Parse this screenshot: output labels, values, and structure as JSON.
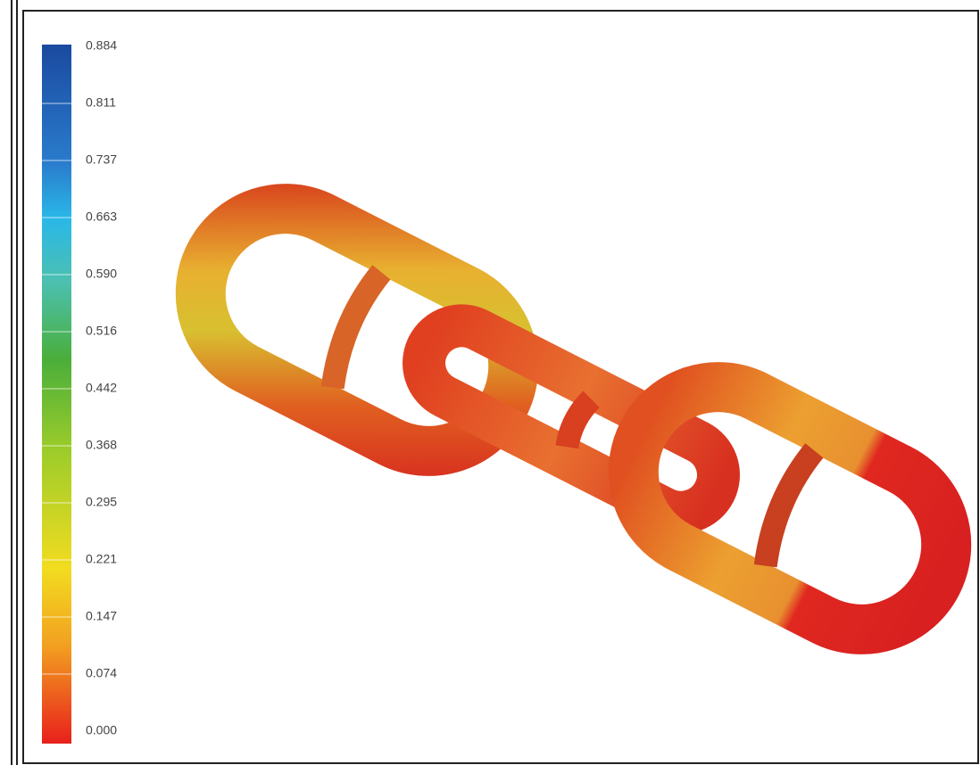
{
  "legend": {
    "labels": [
      "0.884",
      "0.811",
      "0.737",
      "0.663",
      "0.590",
      "0.516",
      "0.442",
      "0.368",
      "0.295",
      "0.221",
      "0.147",
      "0.074",
      "0.000"
    ]
  }
}
